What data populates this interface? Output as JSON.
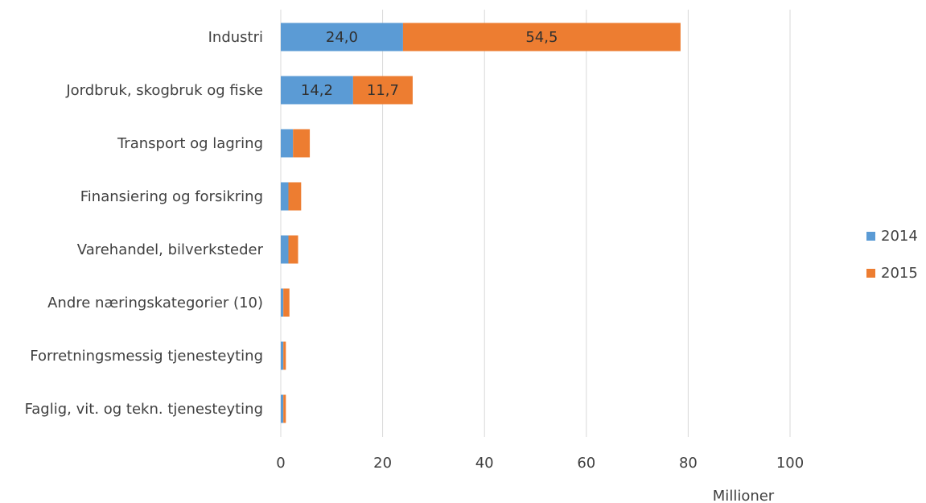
{
  "chart_data": {
    "type": "bar",
    "orientation": "horizontal",
    "stacked": true,
    "categories": [
      "Industri",
      "Jordbruk, skogbruk og fiske",
      "Transport og lagring",
      "Finansiering og forsikring",
      "Varehandel, bilverksteder",
      "Andre næringskategorier (10)",
      "Forretningsmessig tjenesteyting",
      "Faglig, vit. og tekn. tjenesteyting"
    ],
    "series": [
      {
        "name": "2014",
        "color": "#5B9BD5",
        "values": [
          24.0,
          14.2,
          2.4,
          1.5,
          1.5,
          0.5,
          0.5,
          0.5
        ],
        "data_labels": [
          "24,0",
          "14,2",
          "",
          "",
          "",
          "",
          "",
          ""
        ]
      },
      {
        "name": "2015",
        "color": "#ED7D31",
        "values": [
          54.5,
          11.7,
          3.3,
          2.5,
          1.9,
          1.2,
          0.5,
          0.5
        ],
        "data_labels": [
          "54,5",
          "11,7",
          "",
          "",
          "",
          "",
          "",
          ""
        ]
      }
    ],
    "xlim": [
      0,
      100
    ],
    "xticks": [
      0,
      20,
      40,
      60,
      80,
      100
    ],
    "xlabel": "Millioner",
    "ylabel": "",
    "title": "",
    "grid": "vertical",
    "legend": "right"
  }
}
